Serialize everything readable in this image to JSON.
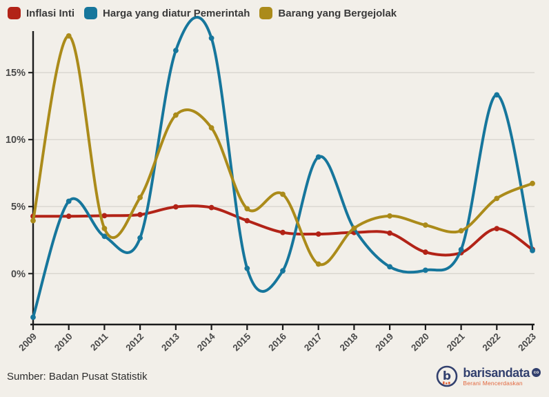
{
  "legend": [
    {
      "label": "Inflasi Inti",
      "color": "#b22317"
    },
    {
      "label": "Harga yang diatur Pemerintah",
      "color": "#16769c"
    },
    {
      "label": "Barang yang Bergejolak",
      "color": "#ab8b1a"
    }
  ],
  "chart_data": {
    "type": "line",
    "x": [
      2009,
      2010,
      2011,
      2012,
      2013,
      2014,
      2015,
      2016,
      2017,
      2018,
      2019,
      2020,
      2021,
      2022,
      2023
    ],
    "series": [
      {
        "name": "Inflasi Inti",
        "color": "#b22317",
        "values": [
          4.28,
          4.28,
          4.32,
          4.4,
          4.98,
          4.93,
          3.95,
          3.07,
          2.95,
          3.07,
          3.02,
          1.6,
          1.56,
          3.36,
          1.8
        ]
      },
      {
        "name": "Harga yang diatur Pemerintah",
        "color": "#16769c",
        "values": [
          -3.26,
          5.4,
          2.78,
          2.66,
          16.65,
          17.57,
          0.39,
          0.21,
          8.7,
          3.36,
          0.51,
          0.25,
          1.79,
          13.34,
          1.72
        ]
      },
      {
        "name": "Barang yang Bergejolak",
        "color": "#ab8b1a",
        "values": [
          3.95,
          17.74,
          3.37,
          5.68,
          11.83,
          10.88,
          4.84,
          5.92,
          0.71,
          3.39,
          4.3,
          3.62,
          3.2,
          5.61,
          6.73
        ]
      }
    ],
    "ytick_labels": [
      "0%",
      "5%",
      "10%",
      "15%"
    ],
    "ytick_values": [
      0,
      5,
      10,
      15
    ],
    "ylim": [
      -3.8,
      18.1
    ],
    "grid": true,
    "legend_position": "top-left",
    "marker": "circle",
    "smoothing": "spline",
    "colors": {
      "grid": "#d8d5ce",
      "axis": "#1b1b1b",
      "tick_label": "#4a4a4a",
      "background": "#f2efe9"
    }
  },
  "footer": {
    "source": "Sumber: Badan Pusat Statistik"
  },
  "logo": {
    "brand": "barisandata",
    "suffix": "co",
    "tagline": "Berani Mencerdaskan",
    "brand_color": "#32406e",
    "tagline_color": "#e2673e"
  }
}
